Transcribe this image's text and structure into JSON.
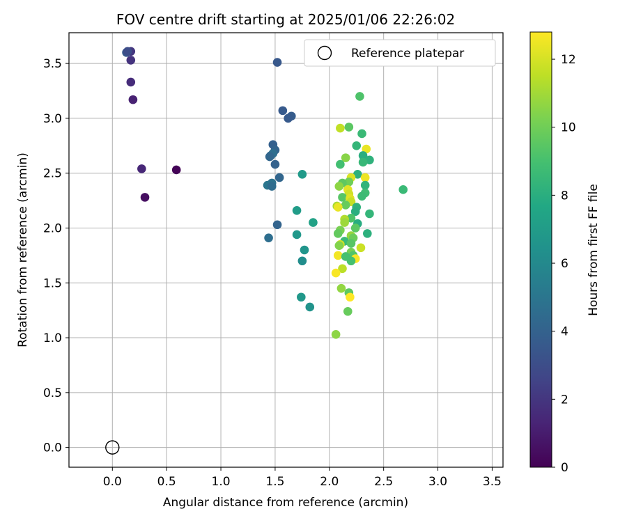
{
  "chart_data": {
    "type": "scatter",
    "title": "FOV centre drift starting at 2025/01/06 22:26:02",
    "xlabel": "Angular distance from reference (arcmin)",
    "ylabel": "Rotation from reference (arcmin)",
    "xlim": [
      -0.4,
      3.6
    ],
    "ylim": [
      -0.18,
      3.78
    ],
    "x_ticks": [
      "0.0",
      "0.5",
      "1.0",
      "1.5",
      "2.0",
      "2.5",
      "3.0",
      "3.5"
    ],
    "y_ticks": [
      "0.0",
      "0.5",
      "1.0",
      "1.5",
      "2.0",
      "2.5",
      "3.0",
      "3.5"
    ],
    "grid": true,
    "legend": {
      "placement": "top-right",
      "label": "Reference platepar"
    },
    "reference_point": {
      "x": 0.0,
      "y": 0.0
    },
    "colorbar": {
      "label": "Hours from first FF file",
      "min": 0,
      "max": 12.8,
      "ticks": [
        "0",
        "2",
        "4",
        "6",
        "8",
        "10",
        "12"
      ],
      "colormap": "viridis"
    },
    "points": [
      {
        "x": 0.59,
        "y": 2.53,
        "c": 0.1
      },
      {
        "x": 0.3,
        "y": 2.28,
        "c": 0.5
      },
      {
        "x": 0.27,
        "y": 2.54,
        "c": 1.4
      },
      {
        "x": 0.19,
        "y": 3.17,
        "c": 1.2
      },
      {
        "x": 0.17,
        "y": 3.33,
        "c": 1.6
      },
      {
        "x": 0.17,
        "y": 3.53,
        "c": 1.9
      },
      {
        "x": 0.17,
        "y": 3.61,
        "c": 2.0
      },
      {
        "x": 0.13,
        "y": 3.6,
        "c": 3.6
      },
      {
        "x": 0.14,
        "y": 3.61,
        "c": 3.0
      },
      {
        "x": 1.52,
        "y": 3.51,
        "c": 3.5
      },
      {
        "x": 1.57,
        "y": 3.07,
        "c": 3.6
      },
      {
        "x": 1.65,
        "y": 3.02,
        "c": 3.7
      },
      {
        "x": 1.62,
        "y": 3.0,
        "c": 3.6
      },
      {
        "x": 1.48,
        "y": 2.76,
        "c": 3.9
      },
      {
        "x": 1.5,
        "y": 2.71,
        "c": 4.1
      },
      {
        "x": 1.46,
        "y": 2.66,
        "c": 4.4
      },
      {
        "x": 1.48,
        "y": 2.68,
        "c": 4.6
      },
      {
        "x": 1.45,
        "y": 2.65,
        "c": 4.2
      },
      {
        "x": 1.5,
        "y": 2.58,
        "c": 4.0
      },
      {
        "x": 1.54,
        "y": 2.46,
        "c": 4.2
      },
      {
        "x": 1.47,
        "y": 2.41,
        "c": 4.8
      },
      {
        "x": 1.43,
        "y": 2.39,
        "c": 5.0
      },
      {
        "x": 1.47,
        "y": 2.38,
        "c": 4.5
      },
      {
        "x": 1.44,
        "y": 1.91,
        "c": 4.6
      },
      {
        "x": 1.52,
        "y": 2.03,
        "c": 4.1
      },
      {
        "x": 1.75,
        "y": 2.49,
        "c": 6.9
      },
      {
        "x": 1.7,
        "y": 2.16,
        "c": 7.0
      },
      {
        "x": 1.7,
        "y": 1.94,
        "c": 6.8
      },
      {
        "x": 1.85,
        "y": 2.05,
        "c": 7.3
      },
      {
        "x": 1.77,
        "y": 1.8,
        "c": 6.6
      },
      {
        "x": 1.75,
        "y": 1.7,
        "c": 6.2
      },
      {
        "x": 1.74,
        "y": 1.37,
        "c": 6.8
      },
      {
        "x": 1.82,
        "y": 1.28,
        "c": 6.5
      },
      {
        "x": 2.28,
        "y": 3.2,
        "c": 9.2
      },
      {
        "x": 2.18,
        "y": 2.92,
        "c": 9.5
      },
      {
        "x": 2.3,
        "y": 2.86,
        "c": 8.6
      },
      {
        "x": 2.1,
        "y": 2.91,
        "c": 11.6
      },
      {
        "x": 2.25,
        "y": 2.75,
        "c": 8.4
      },
      {
        "x": 2.34,
        "y": 2.72,
        "c": 12.4
      },
      {
        "x": 2.31,
        "y": 2.66,
        "c": 8.0
      },
      {
        "x": 2.15,
        "y": 2.64,
        "c": 10.5
      },
      {
        "x": 2.37,
        "y": 2.62,
        "c": 8.2
      },
      {
        "x": 2.31,
        "y": 2.6,
        "c": 8.5
      },
      {
        "x": 2.1,
        "y": 2.58,
        "c": 8.9
      },
      {
        "x": 2.26,
        "y": 2.49,
        "c": 8.1
      },
      {
        "x": 2.2,
        "y": 2.46,
        "c": 12.1
      },
      {
        "x": 2.33,
        "y": 2.46,
        "c": 12.5
      },
      {
        "x": 2.18,
        "y": 2.42,
        "c": 10.0
      },
      {
        "x": 2.12,
        "y": 2.41,
        "c": 9.6
      },
      {
        "x": 2.33,
        "y": 2.39,
        "c": 8.3
      },
      {
        "x": 2.09,
        "y": 2.38,
        "c": 10.6
      },
      {
        "x": 2.17,
        "y": 2.35,
        "c": 12.3
      },
      {
        "x": 2.68,
        "y": 2.35,
        "c": 8.6
      },
      {
        "x": 2.33,
        "y": 2.32,
        "c": 8.8
      },
      {
        "x": 2.18,
        "y": 2.31,
        "c": 11.9
      },
      {
        "x": 2.3,
        "y": 2.29,
        "c": 8.7
      },
      {
        "x": 2.12,
        "y": 2.28,
        "c": 9.4
      },
      {
        "x": 2.19,
        "y": 2.27,
        "c": 12.2
      },
      {
        "x": 2.2,
        "y": 2.24,
        "c": 11.7
      },
      {
        "x": 2.15,
        "y": 2.21,
        "c": 9.8
      },
      {
        "x": 2.07,
        "y": 2.2,
        "c": 11.1
      },
      {
        "x": 2.08,
        "y": 2.19,
        "c": 12.4
      },
      {
        "x": 2.25,
        "y": 2.19,
        "c": 8.2
      },
      {
        "x": 2.24,
        "y": 2.15,
        "c": 8.0
      },
      {
        "x": 2.37,
        "y": 2.13,
        "c": 8.4
      },
      {
        "x": 2.2,
        "y": 2.09,
        "c": 9.2
      },
      {
        "x": 2.14,
        "y": 2.08,
        "c": 11.3
      },
      {
        "x": 2.14,
        "y": 2.05,
        "c": 10.9
      },
      {
        "x": 2.26,
        "y": 2.04,
        "c": 7.9
      },
      {
        "x": 2.24,
        "y": 2.0,
        "c": 9.5
      },
      {
        "x": 2.1,
        "y": 1.98,
        "c": 10.2
      },
      {
        "x": 2.08,
        "y": 1.95,
        "c": 9.7
      },
      {
        "x": 2.35,
        "y": 1.95,
        "c": 8.1
      },
      {
        "x": 2.2,
        "y": 1.93,
        "c": 10.8
      },
      {
        "x": 2.22,
        "y": 1.91,
        "c": 9.9
      },
      {
        "x": 2.14,
        "y": 1.88,
        "c": 8.6
      },
      {
        "x": 2.2,
        "y": 1.86,
        "c": 9.4
      },
      {
        "x": 2.1,
        "y": 1.85,
        "c": 11.9
      },
      {
        "x": 2.09,
        "y": 1.84,
        "c": 10.4
      },
      {
        "x": 2.29,
        "y": 1.82,
        "c": 11.8
      },
      {
        "x": 2.2,
        "y": 1.78,
        "c": 10.1
      },
      {
        "x": 2.22,
        "y": 1.75,
        "c": 9.3
      },
      {
        "x": 2.08,
        "y": 1.75,
        "c": 12.6
      },
      {
        "x": 2.15,
        "y": 1.74,
        "c": 9.0
      },
      {
        "x": 2.24,
        "y": 1.72,
        "c": 12.7
      },
      {
        "x": 2.2,
        "y": 1.7,
        "c": 9.0
      },
      {
        "x": 2.12,
        "y": 1.63,
        "c": 11.5
      },
      {
        "x": 2.06,
        "y": 1.59,
        "c": 12.7
      },
      {
        "x": 2.11,
        "y": 1.45,
        "c": 10.7
      },
      {
        "x": 2.18,
        "y": 1.41,
        "c": 9.6
      },
      {
        "x": 2.19,
        "y": 1.37,
        "c": 12.8
      },
      {
        "x": 2.17,
        "y": 1.24,
        "c": 9.8
      },
      {
        "x": 2.06,
        "y": 1.03,
        "c": 10.6
      }
    ]
  }
}
